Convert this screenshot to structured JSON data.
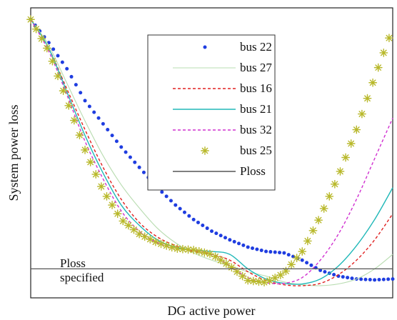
{
  "chart_data": {
    "type": "line",
    "title": "",
    "xlabel": "DG active power",
    "ylabel": "System power loss",
    "xlim": [
      0,
      100
    ],
    "ylim": [
      0,
      100
    ],
    "grid": false,
    "legend_position": "top-center",
    "annotation": {
      "line1": "Ploss",
      "line2": "specified"
    },
    "ploss_specified": {
      "name": "Ploss",
      "value": 10,
      "color": "#555555"
    },
    "series": [
      {
        "name": "bus 22",
        "color": "#1f3de0",
        "style": "dots",
        "x": [
          0,
          5,
          10,
          15,
          20,
          25,
          30,
          35,
          40,
          45,
          50,
          55,
          60,
          65,
          70,
          75,
          80,
          85,
          90,
          95,
          100
        ],
        "y": [
          96,
          88,
          79,
          68,
          60,
          52,
          45,
          38,
          32,
          27,
          23,
          20,
          17.5,
          16,
          15.5,
          13,
          9.5,
          7.5,
          6.5,
          6.2,
          6.5
        ]
      },
      {
        "name": "bus 27",
        "color": "#b8dcb0",
        "style": "solid-thin",
        "x": [
          0,
          5,
          10,
          15,
          20,
          25,
          30,
          35,
          40,
          45,
          50,
          55,
          60,
          65,
          70,
          75,
          80,
          85,
          90,
          95,
          100
        ],
        "y": [
          96,
          87,
          74,
          61,
          49,
          39,
          31,
          24,
          19,
          15.5,
          13,
          11,
          9,
          7.5,
          5.5,
          4.5,
          4.2,
          4.8,
          6.5,
          10,
          15
        ]
      },
      {
        "name": "bus 16",
        "color": "#e02020",
        "style": "dashed",
        "x": [
          0,
          5,
          10,
          15,
          20,
          25,
          30,
          35,
          40,
          45,
          50,
          55,
          60,
          65,
          70,
          75,
          80,
          85,
          90,
          95,
          100
        ],
        "y": [
          96,
          86,
          72,
          58,
          45,
          34,
          26,
          21,
          18,
          16,
          15,
          13,
          9,
          6,
          4.5,
          4.2,
          5,
          8,
          13,
          20,
          29
        ]
      },
      {
        "name": "bus 21",
        "color": "#20b8b8",
        "style": "solid",
        "x": [
          0,
          5,
          10,
          15,
          20,
          25,
          30,
          35,
          40,
          45,
          50,
          55,
          60,
          65,
          70,
          75,
          80,
          85,
          90,
          95,
          100
        ],
        "y": [
          96,
          86,
          71,
          56,
          43,
          32,
          25,
          20,
          17.5,
          16.5,
          16,
          15,
          10,
          6.5,
          5,
          4.8,
          6.5,
          11,
          18,
          27,
          38
        ]
      },
      {
        "name": "bus 32",
        "color": "#d030d0",
        "style": "dashed",
        "x": [
          0,
          5,
          10,
          15,
          20,
          25,
          30,
          35,
          40,
          45,
          50,
          55,
          60,
          65,
          70,
          75,
          80,
          85,
          90,
          95,
          100
        ],
        "y": [
          96,
          85,
          70,
          54,
          41,
          30,
          23,
          19,
          17,
          16.5,
          15,
          11,
          7,
          5.2,
          5,
          7,
          13,
          22,
          34,
          48,
          62
        ]
      },
      {
        "name": "bus 25",
        "color": "#b8b82a",
        "style": "star",
        "x": [
          0,
          5,
          10,
          15,
          20,
          25,
          30,
          35,
          40,
          45,
          50,
          55,
          60,
          65,
          70,
          75,
          80,
          85,
          90,
          95,
          100
        ],
        "y": [
          96,
          85,
          68,
          51,
          37,
          27,
          22,
          19,
          17,
          16.5,
          15,
          11,
          6,
          5.3,
          8.5,
          16,
          28,
          42,
          58,
          76,
          93
        ]
      }
    ]
  }
}
